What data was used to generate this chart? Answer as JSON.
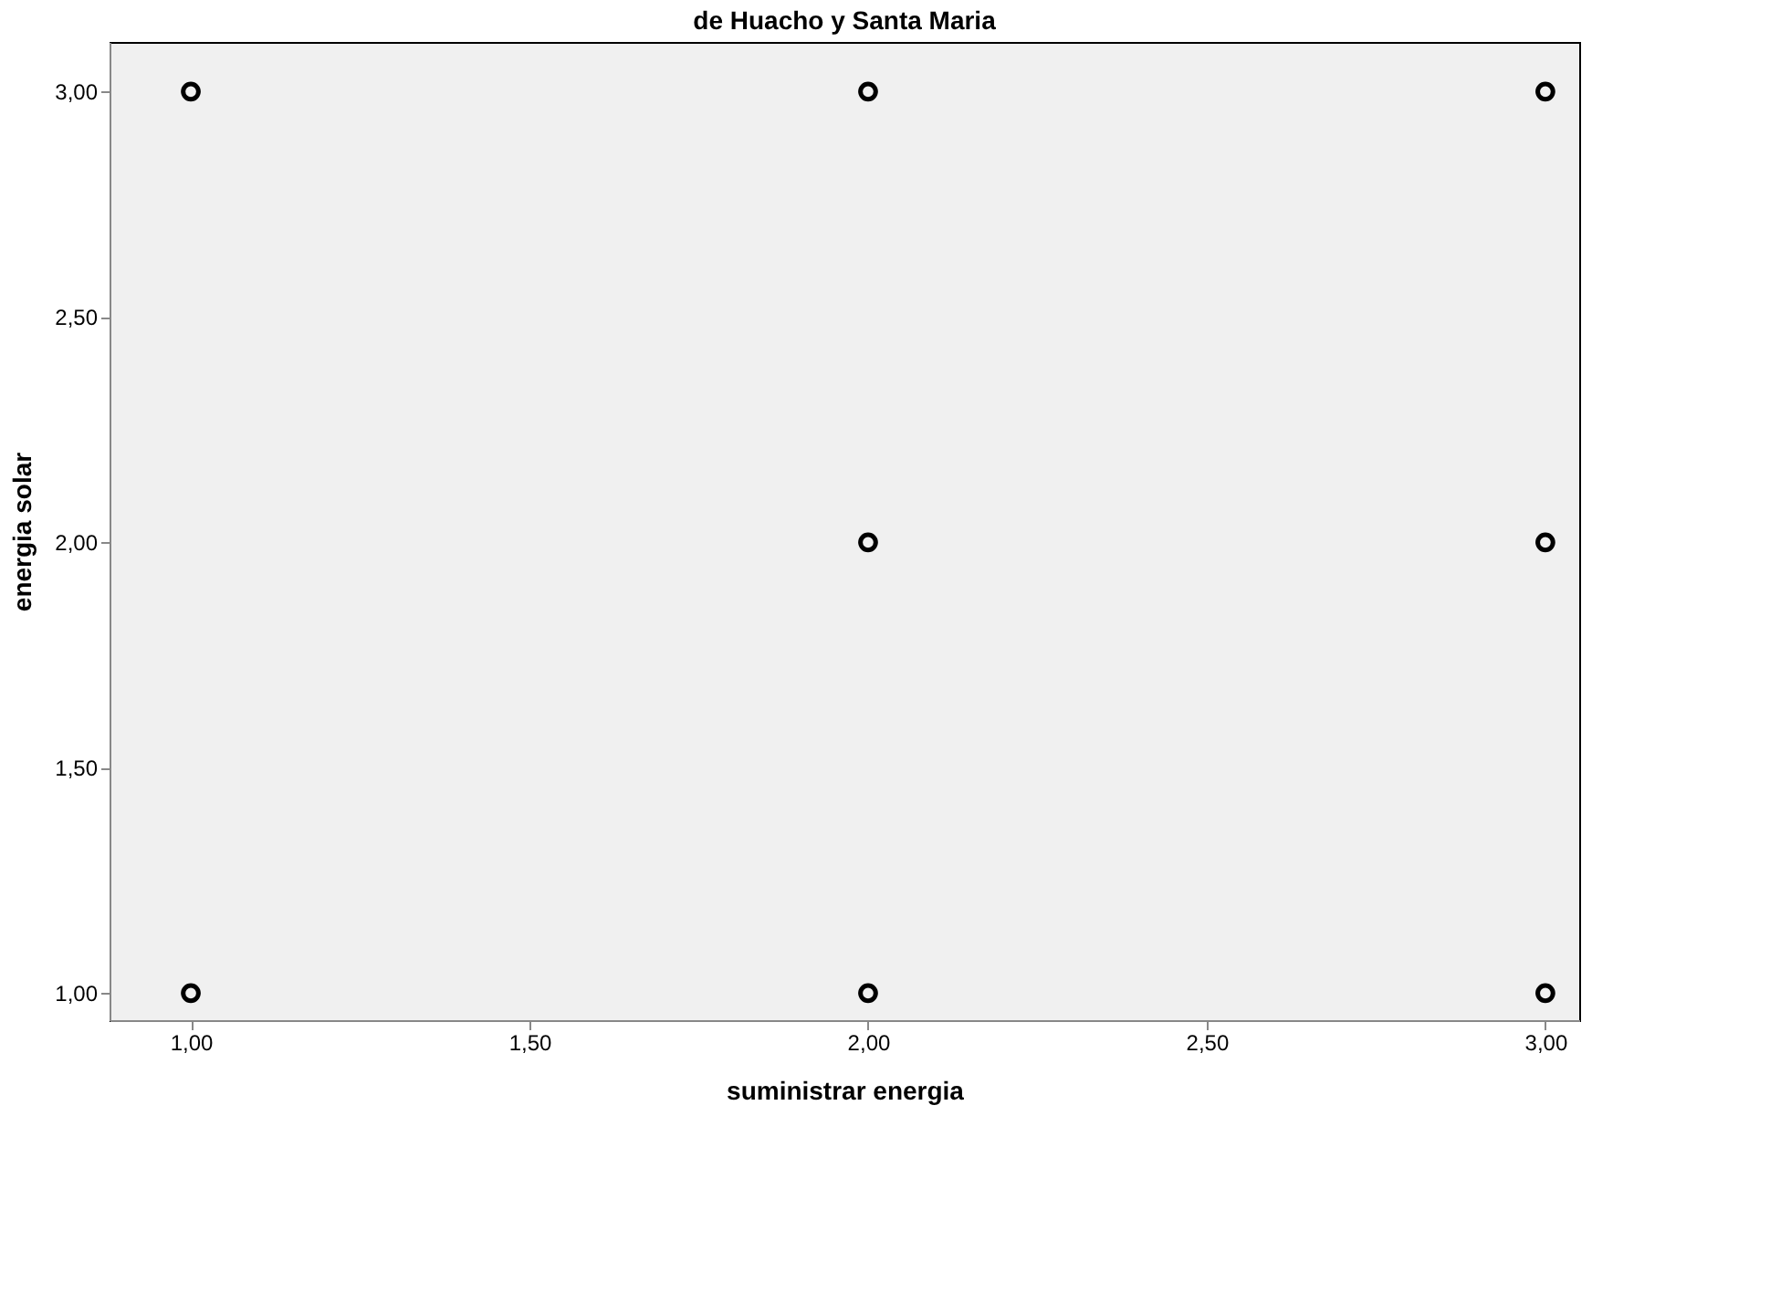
{
  "chart_data": {
    "type": "scatter",
    "title": "de Huacho y Santa Maria",
    "xlabel": "suministrar energia",
    "ylabel": "energia solar",
    "x": [
      1,
      2,
      3,
      2,
      3,
      1,
      2,
      3
    ],
    "values": [
      3,
      3,
      3,
      2,
      2,
      1,
      1,
      1
    ],
    "color": "#000000",
    "marker": "circle",
    "xlim": [
      0.88,
      3.05
    ],
    "ylim": [
      0.94,
      3.11
    ],
    "xticks": [
      {
        "value": 1,
        "label": "1,00"
      },
      {
        "value": 1.5,
        "label": "1,50"
      },
      {
        "value": 2,
        "label": "2,00"
      },
      {
        "value": 2.5,
        "label": "2,50"
      },
      {
        "value": 3,
        "label": "3,00"
      }
    ],
    "yticks": [
      {
        "value": 1,
        "label": "1,00"
      },
      {
        "value": 1.5,
        "label": "1,50"
      },
      {
        "value": 2,
        "label": "2,00"
      },
      {
        "value": 2.5,
        "label": "2,50"
      },
      {
        "value": 3,
        "label": "3,00"
      }
    ],
    "grid": false
  }
}
